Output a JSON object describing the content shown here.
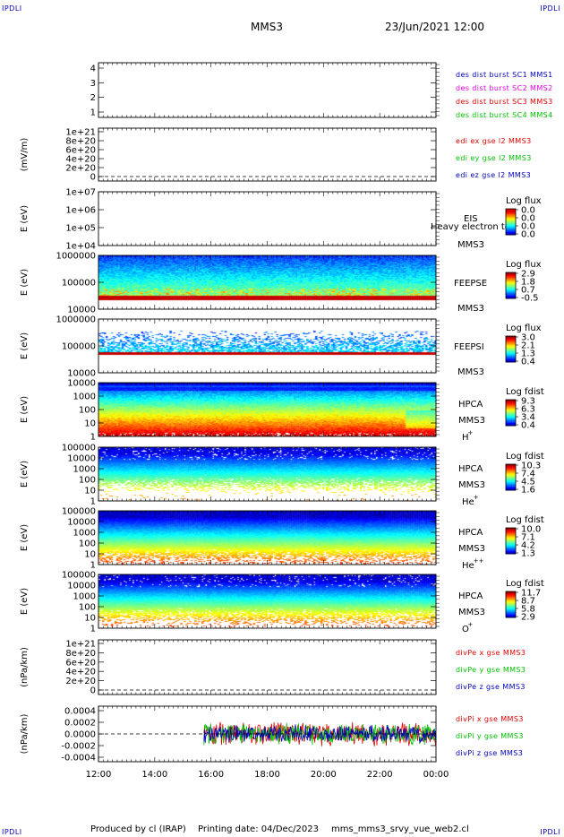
{
  "page": {
    "corner_mark": "IPDLI",
    "mission": "MMS3",
    "datetime": "23/Jun/2021 12:00",
    "footer": {
      "produced_by": "Produced by cl (IRAP)",
      "printing_date": "Printing date: 04/Dec/2023",
      "filename": "mms_mms3_srvy_vue_web2.cl"
    }
  },
  "colors": {
    "red": "#e00000",
    "green": "#00c000",
    "blue": "#0000c0",
    "magenta": "#e000e0"
  },
  "chart_data": {
    "type": "heatmap",
    "time_axis": {
      "ticks": [
        "12:00",
        "14:00",
        "16:00",
        "18:00",
        "20:00",
        "22:00",
        "00:00"
      ],
      "range_hours": [
        12,
        24
      ]
    },
    "panels": [
      {
        "id": "p1",
        "kind": "empty",
        "ylabel": "",
        "yticks": [
          "4",
          "3",
          "2",
          "1"
        ],
        "legend": [
          {
            "text": "des dist burst SC1 MMS1",
            "color": "blue"
          },
          {
            "text": "des dist burst SC2 MMS2",
            "color": "magenta"
          },
          {
            "text": "des dist burst SC3 MMS3",
            "color": "red"
          },
          {
            "text": "des dist burst SC4 MMS4",
            "color": "green"
          }
        ]
      },
      {
        "id": "p2",
        "kind": "empty",
        "ylabel": "(mV/m)",
        "yticks": [
          "1e+21",
          "8e+20",
          "6e+20",
          "4e+20",
          "2e+20",
          "0"
        ],
        "zero_line": true,
        "legend": [
          {
            "text": "edi ex gse l2 MMS3",
            "color": "red"
          },
          {
            "text": "edi ey gse l2 MMS3",
            "color": "green"
          },
          {
            "text": "edi ez gse l2 MMS3",
            "color": "blue"
          }
        ]
      },
      {
        "id": "p3",
        "kind": "empty",
        "ylabel": "E (eV)",
        "yticks": [
          "1e+07",
          "1e+06",
          "1e+05",
          "1e+04"
        ],
        "side": [
          "EIS",
          "MMS3"
        ],
        "overlay_text": "Heavy electron tof",
        "cbar": {
          "title": "Log flux",
          "ticks": [
            "0.0",
            "0.0",
            "0.0",
            "0.0"
          ]
        }
      },
      {
        "id": "p4",
        "kind": "feeps_e",
        "ylabel": "E (eV)",
        "yticks": [
          "1000000",
          "100000",
          "10000"
        ],
        "side": [
          "FEEPSE",
          "MMS3"
        ],
        "cbar": {
          "title": "Log flux",
          "ticks": [
            "2.9",
            "1.8",
            "0.7",
            "-0.5"
          ]
        }
      },
      {
        "id": "p5",
        "kind": "feeps_i",
        "ylabel": "E (eV)",
        "yticks": [
          "1000000",
          "100000",
          "10000"
        ],
        "side": [
          "FEEPSI",
          "MMS3"
        ],
        "cbar": {
          "title": "Log flux",
          "ticks": [
            "3.0",
            "2.1",
            "1.3",
            "0.4"
          ]
        }
      },
      {
        "id": "p6",
        "kind": "hpca_h",
        "ylabel": "E (eV)",
        "yticks": [
          "10000",
          "1000",
          "100",
          "10",
          "1"
        ],
        "side": [
          "HPCA",
          "MMS3"
        ],
        "species": "H",
        "charge": "+",
        "cbar": {
          "title": "Log fdist",
          "ticks": [
            "9.3",
            "6.3",
            "3.4",
            "0.4"
          ]
        }
      },
      {
        "id": "p7",
        "kind": "hpca_he1",
        "ylabel": "E (eV)",
        "yticks": [
          "100000",
          "10000",
          "1000",
          "100",
          "10",
          "1"
        ],
        "side": [
          "HPCA",
          "MMS3"
        ],
        "species": "He",
        "charge": "+",
        "cbar": {
          "title": "Log fdist",
          "ticks": [
            "10.3",
            "7.4",
            "4.5",
            "1.6"
          ]
        }
      },
      {
        "id": "p8",
        "kind": "hpca_he2",
        "ylabel": "E (eV)",
        "yticks": [
          "100000",
          "10000",
          "1000",
          "100",
          "10",
          "1"
        ],
        "side": [
          "HPCA",
          "MMS3"
        ],
        "species": "He",
        "charge": "++",
        "cbar": {
          "title": "Log fdist",
          "ticks": [
            "10.0",
            "7.1",
            "4.2",
            "1.3"
          ]
        }
      },
      {
        "id": "p9",
        "kind": "hpca_o",
        "ylabel": "E (eV)",
        "yticks": [
          "100000",
          "10000",
          "1000",
          "100",
          "10",
          "1"
        ],
        "side": [
          "HPCA",
          "MMS3"
        ],
        "species": "O",
        "charge": "+",
        "cbar": {
          "title": "Log fdist",
          "ticks": [
            "11.7",
            "8.7",
            "5.8",
            "2.9"
          ]
        }
      },
      {
        "id": "p10",
        "kind": "empty",
        "ylabel": "(nPa/km)",
        "yticks": [
          "1e+21",
          "8e+20",
          "6e+20",
          "4e+20",
          "2e+20",
          "0"
        ],
        "zero_line": true,
        "legend": [
          {
            "text": "divPe x gse MMS3",
            "color": "red"
          },
          {
            "text": "divPe y gse MMS3",
            "color": "green"
          },
          {
            "text": "divPe z gse MMS3",
            "color": "blue"
          }
        ]
      },
      {
        "id": "p11",
        "kind": "divpi",
        "ylabel": "(nPa/km)",
        "yticks": [
          "0.0004",
          "0.0002",
          "0.0000",
          "-0.0002",
          "-0.0004"
        ],
        "ylim": [
          -0.0005,
          0.0005
        ],
        "data_start_hour": 15.75,
        "zero_line": true,
        "legend": [
          {
            "text": "divPi x gse MMS3",
            "color": "red"
          },
          {
            "text": "divPi y gse MMS3",
            "color": "green"
          },
          {
            "text": "divPi z gse MMS3",
            "color": "blue"
          }
        ]
      }
    ]
  }
}
